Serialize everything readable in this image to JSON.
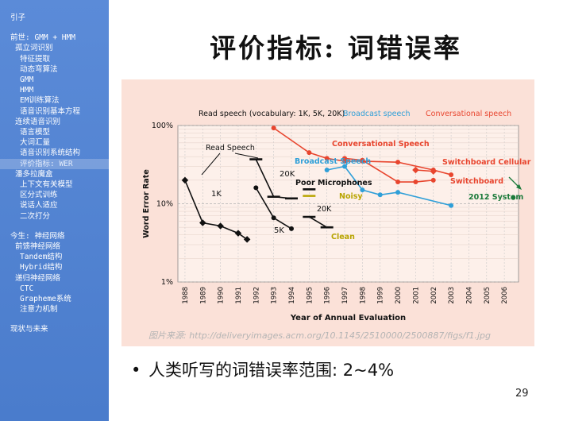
{
  "sidebar": {
    "items": [
      {
        "label": "引子",
        "indent": 0,
        "active": false
      },
      {
        "label": "前世: GMM + HMM",
        "indent": 0,
        "active": false
      },
      {
        "label": "孤立词识别",
        "indent": 1,
        "active": false
      },
      {
        "label": "特征提取",
        "indent": 2,
        "active": false
      },
      {
        "label": "动态弯算法",
        "indent": 2,
        "active": false
      },
      {
        "label": "GMM",
        "indent": 2,
        "active": false
      },
      {
        "label": "HMM",
        "indent": 2,
        "active": false
      },
      {
        "label": "EM训练算法",
        "indent": 2,
        "active": false
      },
      {
        "label": "语音识别基本方程",
        "indent": 2,
        "active": false
      },
      {
        "label": "连续语音识别",
        "indent": 1,
        "active": false
      },
      {
        "label": "语言模型",
        "indent": 2,
        "active": false
      },
      {
        "label": "大词汇量",
        "indent": 2,
        "active": false
      },
      {
        "label": "语音识别系统结构",
        "indent": 2,
        "active": false
      },
      {
        "label": "评价指标: WER",
        "indent": 2,
        "active": true
      },
      {
        "label": "潘多拉魔盒",
        "indent": 1,
        "active": false
      },
      {
        "label": "上下文有关模型",
        "indent": 2,
        "active": false
      },
      {
        "label": "区分式训练",
        "indent": 2,
        "active": false
      },
      {
        "label": "说话人适应",
        "indent": 2,
        "active": false
      },
      {
        "label": "二次打分",
        "indent": 2,
        "active": false
      },
      {
        "label": "今生: 神经网络",
        "indent": 0,
        "active": false
      },
      {
        "label": "前馈神经网络",
        "indent": 1,
        "active": false
      },
      {
        "label": "Tandem结构",
        "indent": 2,
        "active": false
      },
      {
        "label": "Hybrid结构",
        "indent": 2,
        "active": false
      },
      {
        "label": "递归神经网络",
        "indent": 1,
        "active": false
      },
      {
        "label": "CTC",
        "indent": 2,
        "active": false
      },
      {
        "label": "Grapheme系统",
        "indent": 2,
        "active": false
      },
      {
        "label": "注意力机制",
        "indent": 2,
        "active": false
      },
      {
        "label": "现状与未来",
        "indent": 0,
        "active": false
      }
    ]
  },
  "slide": {
    "title": "评价指标: 词错误率",
    "bullet": "人类听写的词错误率范围: 2~4%",
    "page_number": "29"
  },
  "figure": {
    "source": "图片来源: http://deliveryimages.acm.org/10.1145/2510000/2500887/figs/f1.jpg"
  },
  "colors": {
    "sidebar_bg": "#4a7ccc",
    "figure_bg": "#fbe1d8",
    "read_speech": "#111111",
    "broadcast": "#2f9fd8",
    "conversational": "#e8452e",
    "system_2012": "#1a7a3a",
    "noisy_clean": "#b8a400"
  },
  "chart_data": {
    "type": "line",
    "title": "Read speech (vocabulary: 1K, 5K, 20K)",
    "legend": [
      "Read speech (vocabulary: 1K, 5K, 20K)",
      "Broadcast speech",
      "Conversational speech"
    ],
    "legend_placement": "top",
    "xlabel": "Year of Annual Evaluation",
    "ylabel": "Word Error Rate",
    "y_scale": "log",
    "ylim": [
      1,
      100
    ],
    "y_ticks": [
      "100%",
      "10%",
      "1%"
    ],
    "y_tick_values": [
      100,
      10,
      1
    ],
    "x_ticks": [
      "1988",
      "1989",
      "1990",
      "1991",
      "1992",
      "1993",
      "1994",
      "1995",
      "1996",
      "1997",
      "1998",
      "1999",
      "2000",
      "2001",
      "2002",
      "2003",
      "2004",
      "2005",
      "2006"
    ],
    "xlim": [
      1987.6,
      2006.8
    ],
    "series": [
      {
        "name": "1K",
        "color": "#111111",
        "marker": "diamond",
        "points": [
          [
            1988,
            20
          ],
          [
            1989,
            5.7
          ],
          [
            1990,
            5.2
          ],
          [
            1991,
            4.2
          ],
          [
            1991.5,
            3.5
          ]
        ]
      },
      {
        "name": "5K",
        "color": "#111111",
        "marker": "circle",
        "points": [
          [
            1992,
            16
          ],
          [
            1993,
            6.6
          ],
          [
            1994,
            4.8
          ]
        ]
      },
      {
        "name": "20K",
        "color": "#111111",
        "marker": "dash",
        "points": [
          [
            1992,
            37
          ],
          [
            1993,
            12.3
          ],
          [
            1994,
            11.7
          ]
        ]
      },
      {
        "name": "Poor Microphones / Noisy",
        "color": "#111111",
        "marker": "dash",
        "points": [
          [
            1995,
            15.3
          ]
        ]
      },
      {
        "name": "Noisy",
        "color": "#b8a400",
        "marker": "dash",
        "points": [
          [
            1995,
            12.6
          ]
        ]
      },
      {
        "name": "20K Clean",
        "color": "#111111",
        "marker": "dash",
        "points": [
          [
            1995,
            6.8
          ],
          [
            1996,
            5
          ]
        ]
      },
      {
        "name": "Broadcast Speech",
        "color": "#2f9fd8",
        "marker": "circle",
        "points": [
          [
            1996,
            27
          ],
          [
            1997,
            30
          ],
          [
            1998,
            15
          ],
          [
            1999,
            13
          ],
          [
            2000,
            14
          ],
          [
            2003,
            9.5
          ]
        ]
      },
      {
        "name": "Conversational Speech",
        "color": "#e8452e",
        "marker": "circle",
        "points": [
          [
            1993,
            93
          ],
          [
            1995,
            45
          ],
          [
            1996,
            38
          ],
          [
            1997,
            35
          ],
          [
            1998,
            35
          ],
          [
            2000,
            34
          ],
          [
            2002,
            27
          ],
          [
            2003,
            23.5
          ]
        ]
      },
      {
        "name": "Switchboard Cellular",
        "color": "#e8452e",
        "marker": "diamond",
        "points": [
          [
            2001,
            27
          ],
          [
            2002,
            26
          ]
        ]
      },
      {
        "name": "Switchboard",
        "color": "#e8452e",
        "marker": "circle",
        "points": [
          [
            1997,
            38
          ],
          [
            1998,
            36
          ],
          [
            2000,
            19
          ],
          [
            2001,
            19
          ],
          [
            2002,
            20
          ]
        ]
      },
      {
        "name": "2012 System",
        "color": "#1a7a3a",
        "marker": "circle",
        "points": [
          [
            2006.5,
            12
          ]
        ]
      }
    ],
    "annotations": {
      "read_speech": "Read Speech",
      "label_1k": "1K",
      "label_5k": "5K",
      "label_20k": "20K",
      "label_20k_b": "20K",
      "poor_mic": "Poor Microphones",
      "noisy": "Noisy",
      "clean": "Clean",
      "broadcast_speech": "Broadcast Speech",
      "conversational_speech": "Conversational Speech",
      "switchboard_cellular": "Switchboard Cellular",
      "switchboard": "Switchboard",
      "system_2012": "2012 System"
    }
  }
}
